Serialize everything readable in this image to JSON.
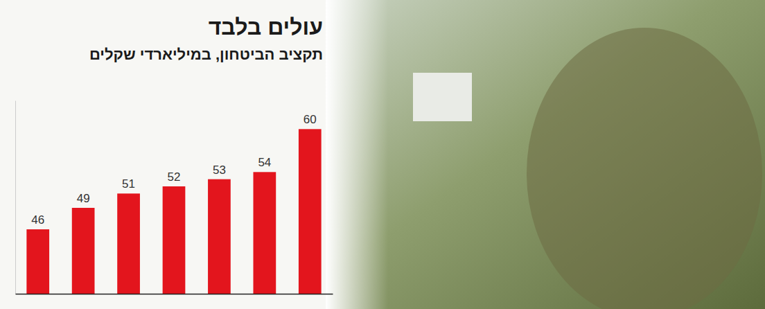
{
  "chart_data": {
    "type": "bar",
    "title": "עולים בלבד",
    "subtitle": "תקציב הביטחון, במיליארדי שקלים",
    "categories": [
      null,
      null,
      null,
      null,
      null,
      null,
      null
    ],
    "values": [
      46,
      49,
      51,
      52,
      53,
      54,
      60
    ],
    "color": "#e3151d",
    "ylim": [
      37,
      64
    ],
    "data_labels": true,
    "tick_labels": false,
    "grid": false
  }
}
